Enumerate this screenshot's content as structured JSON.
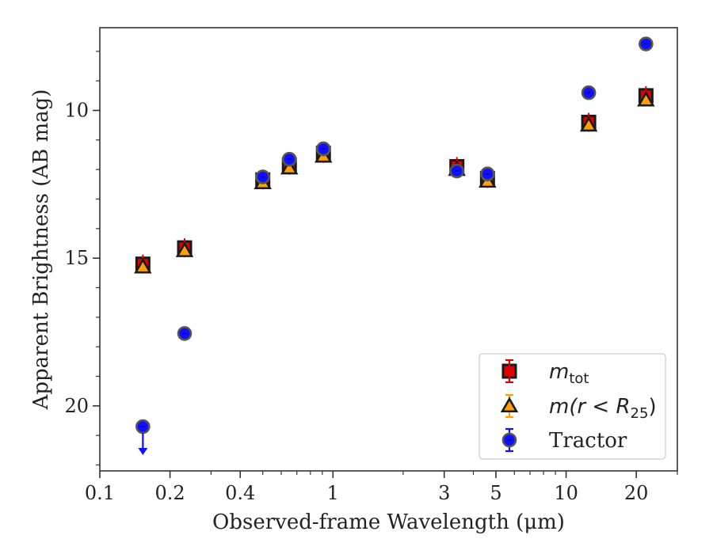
{
  "chart_data": {
    "type": "scatter",
    "title": "",
    "xlabel": "Observed-frame Wavelength (μm)",
    "ylabel": "Apparent Brightness (AB mag)",
    "xscale": "log",
    "xlim": [
      0.1,
      30
    ],
    "ylim": [
      22.2,
      7.2
    ],
    "y_inverted": true,
    "grid": false,
    "legend_position": "bottom-right",
    "xticks": [
      {
        "value": 0.1,
        "label": "0.1"
      },
      {
        "value": 0.2,
        "label": "0.2"
      },
      {
        "value": 0.4,
        "label": "0.4"
      },
      {
        "value": 1,
        "label": "1"
      },
      {
        "value": 3,
        "label": "3"
      },
      {
        "value": 5,
        "label": "5"
      },
      {
        "value": 10,
        "label": "10"
      },
      {
        "value": 20,
        "label": "20"
      }
    ],
    "yticks": [
      {
        "value": 10,
        "label": "10"
      },
      {
        "value": 15,
        "label": "15"
      },
      {
        "value": 20,
        "label": "20"
      }
    ],
    "series": [
      {
        "name": "m_tot",
        "legend_main": "m",
        "legend_sub": "tot",
        "legend_suffix": "",
        "marker": "square",
        "color": "#e00000",
        "edge_color": "#1a1a1a",
        "points": [
          {
            "x": 0.153,
            "y": 15.2
          },
          {
            "x": 0.231,
            "y": 14.65
          },
          {
            "x": 0.5,
            "y": 12.35
          },
          {
            "x": 0.65,
            "y": 11.85
          },
          {
            "x": 0.91,
            "y": 11.45
          },
          {
            "x": 3.4,
            "y": 11.9
          },
          {
            "x": 4.6,
            "y": 12.3
          },
          {
            "x": 12.5,
            "y": 10.4
          },
          {
            "x": 22,
            "y": 9.5
          }
        ]
      },
      {
        "name": "m(r < R25)",
        "legend_main": "m(r < R",
        "legend_sub": "25",
        "legend_suffix": ")",
        "marker": "triangle",
        "color": "#ffa000",
        "edge_color": "#1a1a1a",
        "points": [
          {
            "x": 0.153,
            "y": 15.3
          },
          {
            "x": 0.231,
            "y": 14.75
          },
          {
            "x": 0.5,
            "y": 12.45
          },
          {
            "x": 0.65,
            "y": 11.95
          },
          {
            "x": 0.91,
            "y": 11.55
          },
          {
            "x": 3.4,
            "y": 12.0
          },
          {
            "x": 4.6,
            "y": 12.4
          },
          {
            "x": 12.5,
            "y": 10.5
          },
          {
            "x": 22,
            "y": 9.65
          }
        ]
      },
      {
        "name": "Tractor",
        "legend_main": "Tractor",
        "legend_sub": "",
        "legend_suffix": "",
        "marker": "circle",
        "color": "#1010ff",
        "edge_color": "#555555",
        "points": [
          {
            "x": 0.153,
            "y": 20.7,
            "upper_limit": true
          },
          {
            "x": 0.231,
            "y": 17.55
          },
          {
            "x": 0.5,
            "y": 12.25
          },
          {
            "x": 0.65,
            "y": 11.65
          },
          {
            "x": 0.91,
            "y": 11.3
          },
          {
            "x": 3.4,
            "y": 12.05
          },
          {
            "x": 4.6,
            "y": 12.15
          },
          {
            "x": 12.5,
            "y": 9.4
          },
          {
            "x": 22,
            "y": 7.75
          }
        ]
      }
    ]
  }
}
